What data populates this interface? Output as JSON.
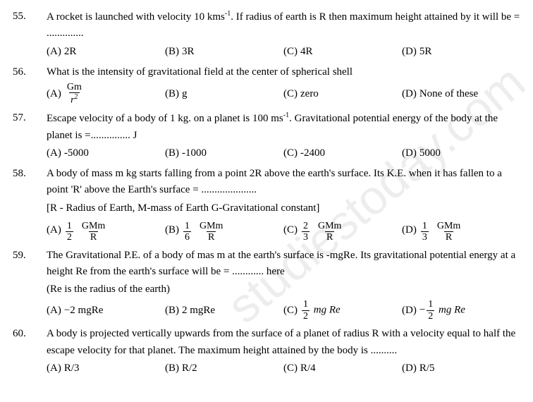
{
  "watermark": "studiestoday.com",
  "questions": [
    {
      "num": "55.",
      "text_parts": [
        "A rocket is launched with velocity 10 kms",
        "-1",
        ". If radius of earth is R then maximum height attained by it will be = .............."
      ],
      "opts": [
        {
          "label": "(A)",
          "val": "2R"
        },
        {
          "label": "(B)",
          "val": "3R"
        },
        {
          "label": "(C)",
          "val": "4R"
        },
        {
          "label": "(D)",
          "val": "5R"
        }
      ]
    },
    {
      "num": "56.",
      "text_parts": [
        "What is the intensity of gravitational field at the center of spherical shell"
      ],
      "opts": [
        {
          "label": "(A)",
          "frac": {
            "num": "Gm",
            "den": "r",
            "den_sup": "2"
          }
        },
        {
          "label": "(B)",
          "val": "g"
        },
        {
          "label": "(C)",
          "val": "zero"
        },
        {
          "label": "(D)",
          "val": "None of these"
        }
      ]
    },
    {
      "num": "57.",
      "text_parts": [
        "Escape velocity of a body of 1 kg. on a planet is 100 ms",
        "-1",
        ". Gravitational potential energy of the body at the planet is =............... J"
      ],
      "opts": [
        {
          "label": "(A)",
          "val": "-5000"
        },
        {
          "label": "(B)",
          "val": "-1000"
        },
        {
          "label": "(C)",
          "val": "-2400"
        },
        {
          "label": "(D)",
          "val": "5000"
        }
      ]
    },
    {
      "num": "58.",
      "text_parts": [
        "A body of mass m kg starts falling from a point 2R above the earth's surface. Its K.E. when it has fallen to a point 'R' above the Earth's surface = ....................."
      ],
      "note": "[R - Radius of Earth, M-mass of Earth G-Gravitational constant]",
      "opts": [
        {
          "label": "(A)",
          "twofrac": [
            {
              "num": "1",
              "den": "2"
            },
            {
              "num": "GMm",
              "den": "R"
            }
          ]
        },
        {
          "label": "(B)",
          "twofrac": [
            {
              "num": "1",
              "den": "6"
            },
            {
              "num": "GMm",
              "den": "R"
            }
          ]
        },
        {
          "label": "(C)",
          "twofrac": [
            {
              "num": "2",
              "den": "3"
            },
            {
              "num": "GMm",
              "den": "R"
            }
          ]
        },
        {
          "label": "(D)",
          "twofrac": [
            {
              "num": "1",
              "den": "3"
            },
            {
              "num": "GMm",
              "den": "R"
            }
          ]
        }
      ]
    },
    {
      "num": "59.",
      "text_parts": [
        "The Gravitational P.E. of a body of mas m at the earth's surface is -mgRe.  Its gravitational potential energy at a height Re from the earth's surface will be = ............ here"
      ],
      "note": "(Re is the radius of the earth)",
      "opts": [
        {
          "label": "(A)",
          "val": "−2 mgRe"
        },
        {
          "label": "(B)",
          "val": "2 mgRe"
        },
        {
          "label": "(C)",
          "pre": "",
          "frac": {
            "num": "1",
            "den": "2"
          },
          "post": " mg Re",
          "italic_post": true
        },
        {
          "label": "(D)",
          "pre": "−",
          "frac": {
            "num": "1",
            "den": "2"
          },
          "post": " mg Re",
          "italic_post": true
        }
      ]
    },
    {
      "num": "60.",
      "text_parts": [
        " A body is projected vertically upwards from the surface of a planet of radius R with a velocity equal to half the escape velocity for that planet. The maximum height attained by the body is .........."
      ],
      "opts": [
        {
          "label": "(A)",
          "val": "R/3"
        },
        {
          "label": "(B)",
          "val": "R/2"
        },
        {
          "label": "(C)",
          "val": "R/4"
        },
        {
          "label": "(D)",
          "val": "R/5"
        }
      ]
    }
  ]
}
